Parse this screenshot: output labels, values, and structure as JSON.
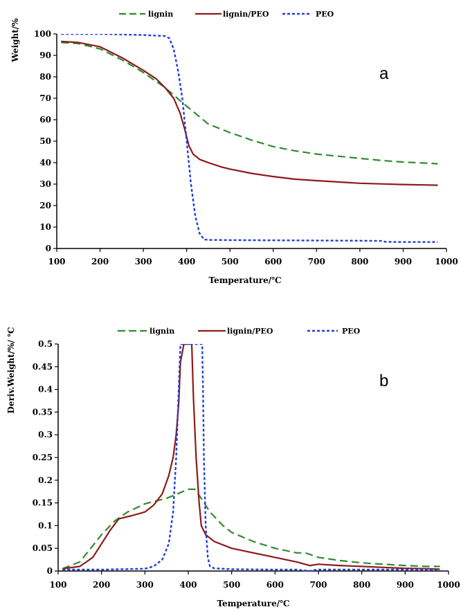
{
  "chart_data": [
    {
      "type": "line",
      "panel_label": "a",
      "xlabel": "Temperature/℃",
      "ylabel": "Weight/%",
      "xlim": [
        100,
        1000
      ],
      "ylim": [
        0,
        100
      ],
      "xticks": [
        "100",
        "200",
        "300",
        "400",
        "500",
        "600",
        "700",
        "800",
        "900",
        "1000"
      ],
      "yticks": [
        "0",
        "10",
        "20",
        "30",
        "40",
        "50",
        "60",
        "70",
        "80",
        "90",
        "100"
      ],
      "legend_position": "top",
      "series": [
        {
          "name": "lignin",
          "color": "#2e8b2e",
          "style": "long-dash",
          "x": [
            110,
            150,
            200,
            250,
            300,
            350,
            390,
            420,
            450,
            500,
            550,
            600,
            650,
            700,
            750,
            800,
            850,
            900,
            950,
            980
          ],
          "y": [
            96,
            95.5,
            93,
            88,
            82,
            75,
            68,
            63,
            58,
            54,
            50.5,
            47.5,
            45.5,
            44,
            43,
            42,
            41,
            40.3,
            39.8,
            39.5
          ]
        },
        {
          "name": "lignin/PEO",
          "color": "#8b1a1a",
          "style": "solid",
          "x": [
            110,
            150,
            200,
            250,
            300,
            330,
            350,
            370,
            385,
            395,
            405,
            415,
            430,
            450,
            480,
            500,
            550,
            600,
            650,
            700,
            750,
            800,
            850,
            900,
            950,
            980
          ],
          "y": [
            96.5,
            96,
            94,
            89,
            83,
            79,
            75,
            70,
            63,
            56,
            48,
            44,
            41.5,
            40,
            38,
            37,
            35,
            33.5,
            32.3,
            31.6,
            31,
            30.4,
            30.1,
            29.8,
            29.6,
            29.5
          ]
        },
        {
          "name": "PEO",
          "color": "#1f3fd6",
          "style": "short-dash",
          "x": [
            110,
            200,
            300,
            350,
            360,
            370,
            380,
            390,
            400,
            410,
            420,
            430,
            440,
            450,
            500,
            600,
            700,
            800,
            850,
            860,
            900,
            980
          ],
          "y": [
            100,
            100,
            99.5,
            99,
            98,
            93,
            83,
            70,
            50,
            30,
            15,
            7,
            4.2,
            4,
            3.9,
            3.8,
            3.7,
            3.6,
            3.5,
            3.1,
            3,
            3
          ]
        }
      ]
    },
    {
      "type": "line",
      "panel_label": "b",
      "xlabel": "Temperature/℃",
      "ylabel": "Deriv.Weight/%/ ℃",
      "xlim": [
        100,
        1000
      ],
      "ylim": [
        0,
        0.5
      ],
      "xticks": [
        "100",
        "200",
        "300",
        "400",
        "500",
        "600",
        "700",
        "800",
        "900",
        "1000"
      ],
      "yticks": [
        "0",
        "0.05",
        "0.1",
        "0.15",
        "0.2",
        "0.25",
        "0.3",
        "0.35",
        "0.4",
        "0.45",
        "0.5"
      ],
      "legend_position": "top",
      "series": [
        {
          "name": "lignin",
          "color": "#2e8b2e",
          "style": "long-dash",
          "x": [
            110,
            150,
            200,
            230,
            260,
            300,
            350,
            380,
            400,
            415,
            430,
            450,
            480,
            500,
            550,
            600,
            650,
            670,
            700,
            750,
            800,
            850,
            900,
            950,
            980
          ],
          "y": [
            0.005,
            0.02,
            0.08,
            0.11,
            0.13,
            0.148,
            0.16,
            0.172,
            0.18,
            0.18,
            0.16,
            0.13,
            0.1,
            0.085,
            0.065,
            0.05,
            0.04,
            0.04,
            0.03,
            0.023,
            0.018,
            0.015,
            0.012,
            0.01,
            0.01
          ]
        },
        {
          "name": "lignin/PEO",
          "color": "#8b1a1a",
          "style": "solid",
          "x": [
            110,
            150,
            180,
            200,
            220,
            240,
            270,
            300,
            320,
            340,
            355,
            365,
            372,
            378,
            382,
            390,
            398,
            402,
            405,
            408,
            412,
            418,
            425,
            430,
            440,
            460,
            500,
            550,
            600,
            650,
            680,
            700,
            750,
            800,
            850,
            900,
            950,
            980
          ],
          "y": [
            0.005,
            0.01,
            0.03,
            0.06,
            0.09,
            0.115,
            0.122,
            0.13,
            0.145,
            0.17,
            0.21,
            0.25,
            0.3,
            0.37,
            0.46,
            0.5,
            0.5,
            0.5,
            0.5,
            0.5,
            0.38,
            0.25,
            0.15,
            0.1,
            0.08,
            0.065,
            0.05,
            0.04,
            0.03,
            0.02,
            0.012,
            0.015,
            0.012,
            0.01,
            0.008,
            0.006,
            0.005,
            0.004
          ]
        },
        {
          "name": "PEO",
          "color": "#1f3fd6",
          "style": "short-dash",
          "x": [
            110,
            200,
            300,
            320,
            340,
            355,
            365,
            372,
            378,
            382,
            385,
            432,
            434,
            436,
            440,
            445,
            450,
            460,
            500,
            600,
            650,
            680,
            690,
            700,
            800,
            900,
            980
          ],
          "y": [
            0.003,
            0.003,
            0.005,
            0.01,
            0.025,
            0.06,
            0.13,
            0.25,
            0.4,
            0.5,
            0.5,
            0.5,
            0.4,
            0.25,
            0.1,
            0.03,
            0.01,
            0.006,
            0.004,
            0.003,
            0.003,
            0,
            0.002,
            0.003,
            0.003,
            0.003,
            0.003
          ]
        }
      ]
    }
  ]
}
